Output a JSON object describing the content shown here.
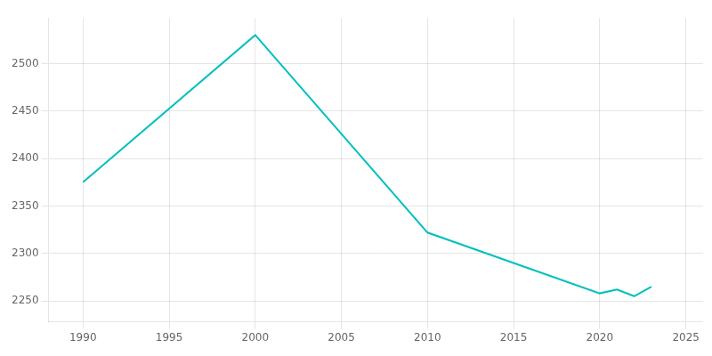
{
  "chart_data": {
    "type": "line",
    "x": [
      1990,
      2000,
      2010,
      2020,
      2021,
      2022,
      2023
    ],
    "values": [
      2375,
      2530,
      2322,
      2258,
      2262,
      2255,
      2265
    ],
    "color": "#00BFBF",
    "xlim": [
      1988,
      2026
    ],
    "ylim": [
      2228,
      2548
    ],
    "xticks": [
      1990,
      1995,
      2000,
      2005,
      2010,
      2015,
      2020,
      2025
    ],
    "yticks": [
      2250,
      2300,
      2350,
      2400,
      2450,
      2500
    ],
    "grid": true
  }
}
